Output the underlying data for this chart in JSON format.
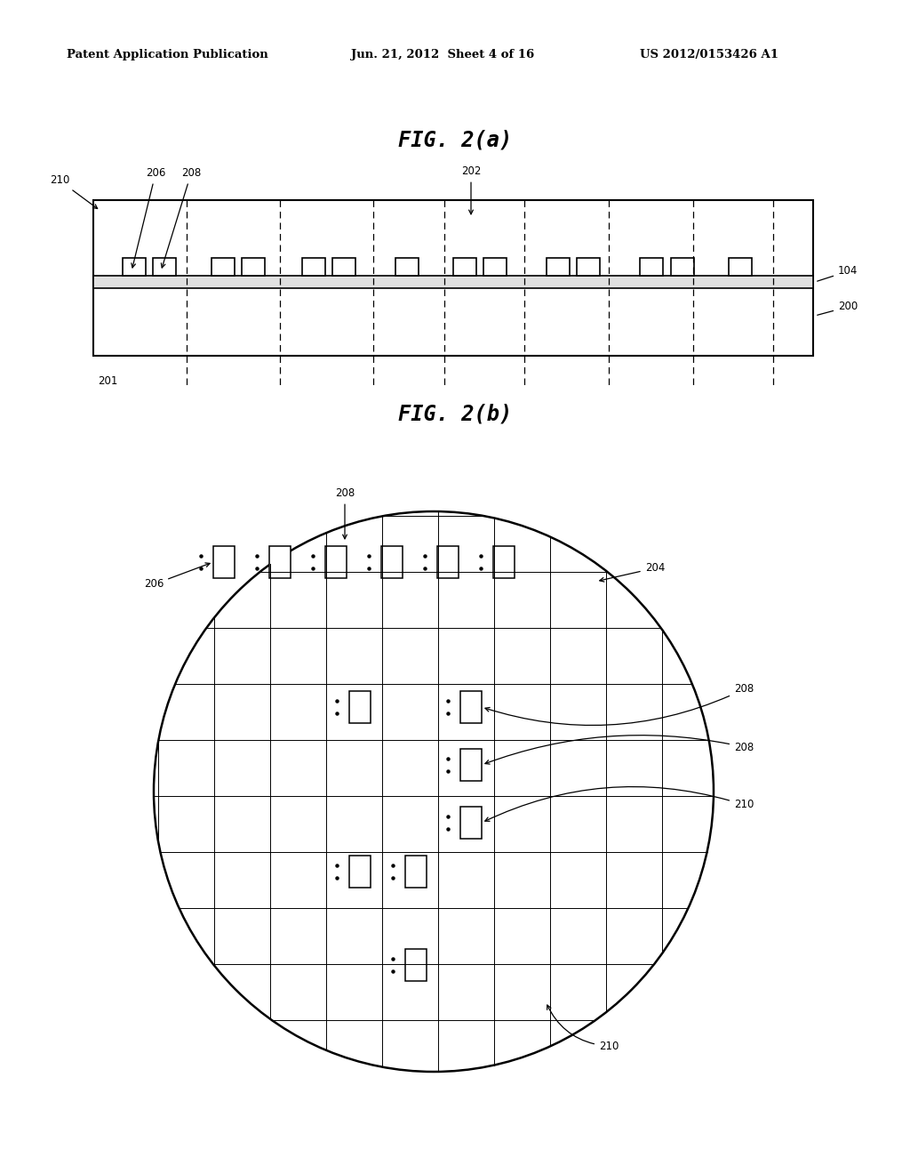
{
  "header_left": "Patent Application Publication",
  "header_mid": "Jun. 21, 2012  Sheet 4 of 16",
  "header_right": "US 2012/0153426 A1",
  "fig2a_title": "FIG. 2(a)",
  "fig2b_title": "FIG. 2(b)",
  "bg_color": "#ffffff",
  "line_color": "#000000",
  "label_210_2a": "210",
  "label_206_2a": "206",
  "label_208_2a": "208",
  "label_202_2a": "202",
  "label_104_2a": "104",
  "label_200_2a": "200",
  "label_201_2a": "201",
  "label_206_2b": "206",
  "label_208_2b_top": "208",
  "label_208_2b_r1": "208",
  "label_208_2b_r2": "208",
  "label_210_2b_r": "210",
  "label_210_2b_bot": "210",
  "label_204_2b": "204"
}
